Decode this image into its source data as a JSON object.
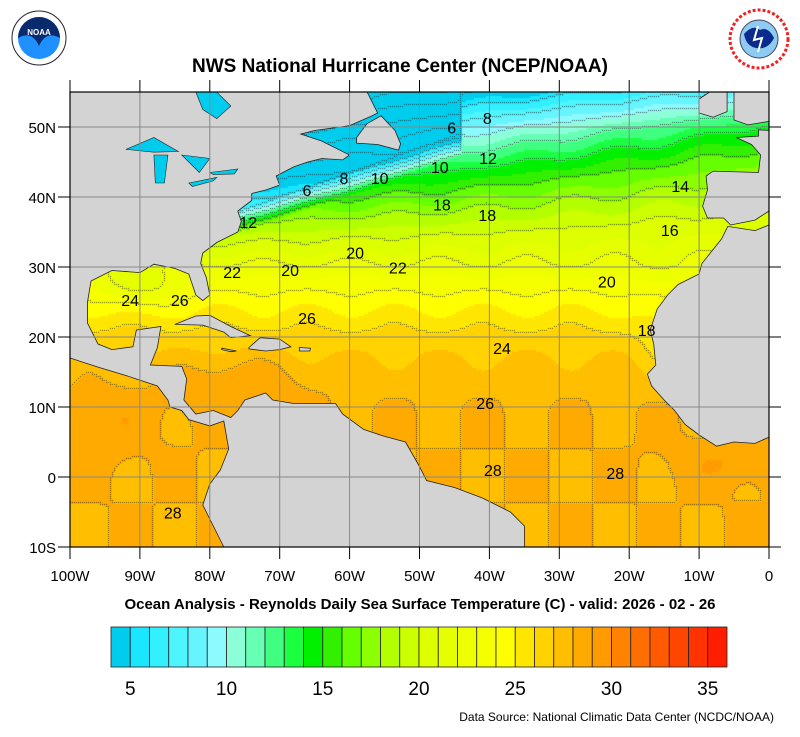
{
  "title": "NWS National Hurricane Center (NCEP/NOAA)",
  "subtitle": "Ocean Analysis - Reynolds Daily Sea Surface Temperature (C) - valid: 2026 - 02 - 26",
  "footer": "Data Source: National Climatic Data Center (NCDC/NOAA)",
  "logos": {
    "left": "NOAA",
    "right": "National Weather Service"
  },
  "map": {
    "lon_range": [
      -100,
      0
    ],
    "lat_range": [
      -10,
      55
    ],
    "land_color": "#d3d3d3",
    "grid": true,
    "lon_ticks": [
      {
        "value": -100,
        "label": "100W"
      },
      {
        "value": -90,
        "label": "90W"
      },
      {
        "value": -80,
        "label": "80W"
      },
      {
        "value": -70,
        "label": "70W"
      },
      {
        "value": -60,
        "label": "60W"
      },
      {
        "value": -50,
        "label": "50W"
      },
      {
        "value": -40,
        "label": "40W"
      },
      {
        "value": -30,
        "label": "30W"
      },
      {
        "value": -20,
        "label": "20W"
      },
      {
        "value": -10,
        "label": "10W"
      },
      {
        "value": 0,
        "label": "0"
      }
    ],
    "lat_ticks": [
      {
        "value": 50,
        "label": "50N"
      },
      {
        "value": 40,
        "label": "40N"
      },
      {
        "value": 30,
        "label": "30N"
      },
      {
        "value": 20,
        "label": "20N"
      },
      {
        "value": 10,
        "label": "10N"
      },
      {
        "value": 0,
        "label": "0"
      },
      {
        "value": -10,
        "label": "10S"
      }
    ],
    "contour_interval": 2,
    "contour_labels": [
      {
        "text": "8",
        "lon": -40.3,
        "lat": 51.3
      },
      {
        "text": "6",
        "lon": -45.4,
        "lat": 49.9
      },
      {
        "text": "12",
        "lon": -40.2,
        "lat": 45.6
      },
      {
        "text": "10",
        "lon": -47.1,
        "lat": 44.3
      },
      {
        "text": "14",
        "lon": -12.7,
        "lat": 41.6
      },
      {
        "text": "6",
        "lon": -66.1,
        "lat": 41.0
      },
      {
        "text": "8",
        "lon": -60.8,
        "lat": 42.7
      },
      {
        "text": "10",
        "lon": -55.7,
        "lat": 42.7
      },
      {
        "text": "18",
        "lon": -46.8,
        "lat": 38.9
      },
      {
        "text": "18",
        "lon": -40.3,
        "lat": 37.4
      },
      {
        "text": "16",
        "lon": -14.2,
        "lat": 35.3
      },
      {
        "text": "12",
        "lon": -74.5,
        "lat": 36.4
      },
      {
        "text": "20",
        "lon": -59.2,
        "lat": 32.1
      },
      {
        "text": "22",
        "lon": -76.8,
        "lat": 29.3
      },
      {
        "text": "20",
        "lon": -68.5,
        "lat": 29.6
      },
      {
        "text": "22",
        "lon": -53.1,
        "lat": 29.9
      },
      {
        "text": "20",
        "lon": -23.2,
        "lat": 27.9
      },
      {
        "text": "24",
        "lon": -91.4,
        "lat": 25.3
      },
      {
        "text": "26",
        "lon": -84.3,
        "lat": 25.3
      },
      {
        "text": "26",
        "lon": -66.1,
        "lat": 22.7
      },
      {
        "text": "18",
        "lon": -17.5,
        "lat": 21.0
      },
      {
        "text": "24",
        "lon": -38.2,
        "lat": 18.4
      },
      {
        "text": "26",
        "lon": -40.6,
        "lat": 10.6
      },
      {
        "text": "28",
        "lon": -39.5,
        "lat": 1.0
      },
      {
        "text": "28",
        "lon": -22.0,
        "lat": 0.6
      },
      {
        "text": "28",
        "lon": -85.3,
        "lat": -5.1
      }
    ]
  },
  "colorbar": {
    "min": 4,
    "max": 36,
    "step": 1,
    "labels": [
      {
        "value": 5,
        "label": "5"
      },
      {
        "value": 10,
        "label": "10"
      },
      {
        "value": 15,
        "label": "15"
      },
      {
        "value": 20,
        "label": "20"
      },
      {
        "value": 25,
        "label": "25"
      },
      {
        "value": 30,
        "label": "30"
      },
      {
        "value": 35,
        "label": "35"
      }
    ],
    "colors": [
      "#00ccee",
      "#19e6ff",
      "#33f0ff",
      "#4df5ff",
      "#66f5ff",
      "#8cfaff",
      "#8cffd9",
      "#66ffb3",
      "#40ff80",
      "#1aff40",
      "#00f000",
      "#33f000",
      "#66ff00",
      "#8cff00",
      "#b3ff00",
      "#ccff00",
      "#ddff00",
      "#e6ff00",
      "#eeff00",
      "#f5ff00",
      "#ffff00",
      "#ffe600",
      "#ffd200",
      "#ffbe00",
      "#ffaa00",
      "#ff9b00",
      "#ff8200",
      "#ff6e00",
      "#ff5a00",
      "#ff4600",
      "#ff3200",
      "#ff1e00"
    ]
  }
}
